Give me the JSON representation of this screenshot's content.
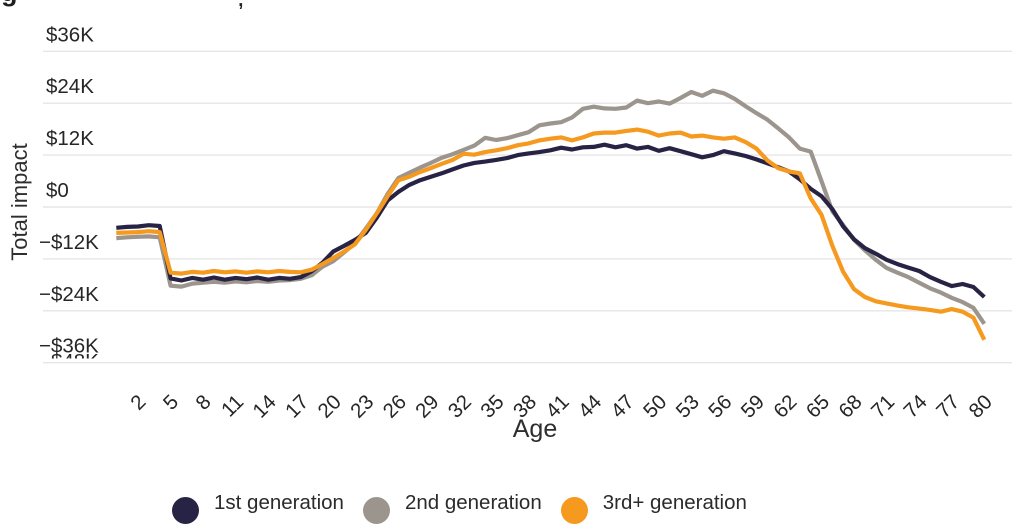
{
  "clipped_header": {
    "fragment_left": "g",
    "fragment_comma": ","
  },
  "chart_data": {
    "type": "line",
    "title": "",
    "xlabel": "Age",
    "ylabel": "Total impact",
    "grid": true,
    "legend_position": "bottom",
    "ylim": [
      -44,
      42
    ],
    "y_tick_labels": [
      "$36K",
      "$24K",
      "$12K",
      "$0",
      "−$12K",
      "−$24K",
      "−$36K"
    ],
    "y_tick_values": [
      36,
      24,
      12,
      0,
      -12,
      -24,
      -36
    ],
    "clipped_y_tick_label": "−$48K",
    "x_tick_labels": [
      2,
      5,
      8,
      11,
      14,
      17,
      20,
      23,
      26,
      29,
      32,
      35,
      38,
      41,
      44,
      47,
      50,
      53,
      56,
      59,
      62,
      65,
      68,
      71,
      74,
      77,
      80
    ],
    "x": [
      0,
      1,
      2,
      3,
      4,
      5,
      6,
      7,
      8,
      9,
      10,
      11,
      12,
      13,
      14,
      15,
      16,
      17,
      18,
      19,
      20,
      21,
      22,
      23,
      24,
      25,
      26,
      27,
      28,
      29,
      30,
      31,
      32,
      33,
      34,
      35,
      36,
      37,
      38,
      39,
      40,
      41,
      42,
      43,
      44,
      45,
      46,
      47,
      48,
      49,
      50,
      51,
      52,
      53,
      54,
      55,
      56,
      57,
      58,
      59,
      60,
      61,
      62,
      63,
      64,
      65,
      66,
      67,
      68,
      69,
      70,
      71,
      72,
      73,
      74,
      75,
      76,
      77,
      78,
      79,
      80
    ],
    "value_unit": "$K",
    "series": [
      {
        "name": "1st generation",
        "color": "#272344",
        "values": [
          -4.8,
          -4.6,
          -4.5,
          -4.2,
          -4.4,
          -16.5,
          -17.0,
          -16.4,
          -16.8,
          -16.3,
          -16.8,
          -16.4,
          -16.7,
          -16.3,
          -16.8,
          -16.4,
          -16.6,
          -16.2,
          -14.9,
          -12.9,
          -10.3,
          -9.0,
          -7.6,
          -6.0,
          -2.5,
          1.5,
          3.5,
          5.1,
          6.2,
          7.0,
          7.8,
          8.7,
          9.6,
          10.2,
          10.5,
          10.9,
          11.3,
          12.0,
          12.4,
          12.7,
          13.1,
          13.7,
          13.3,
          13.8,
          13.9,
          14.4,
          13.8,
          14.3,
          13.5,
          13.9,
          13.0,
          13.6,
          12.9,
          12.2,
          11.5,
          12.0,
          12.9,
          12.4,
          11.8,
          11.0,
          10.1,
          9.2,
          8.2,
          6.4,
          4.2,
          2.5,
          -0.5,
          -4.5,
          -7.5,
          -9.5,
          -10.8,
          -12.2,
          -13.2,
          -14.0,
          -14.8,
          -16.2,
          -17.3,
          -18.3,
          -17.8,
          -18.5,
          -20.8
        ]
      },
      {
        "name": "2nd generation",
        "color": "#9b958e",
        "values": [
          -7.2,
          -7.0,
          -6.9,
          -6.8,
          -7.0,
          -18.2,
          -18.4,
          -17.7,
          -17.5,
          -17.3,
          -17.5,
          -17.2,
          -17.4,
          -17.1,
          -17.3,
          -17.0,
          -16.9,
          -16.6,
          -15.8,
          -13.8,
          -12.5,
          -10.5,
          -8.3,
          -5.0,
          -1.5,
          3.0,
          6.7,
          7.9,
          9.1,
          10.2,
          11.4,
          12.2,
          13.2,
          14.2,
          16.0,
          15.5,
          15.9,
          16.6,
          17.3,
          18.9,
          19.3,
          19.6,
          20.7,
          22.7,
          23.2,
          22.8,
          22.7,
          23.0,
          24.6,
          24.0,
          24.4,
          23.9,
          25.2,
          26.6,
          25.7,
          26.9,
          26.3,
          25.0,
          23.3,
          21.7,
          20.2,
          18.2,
          16.1,
          13.5,
          12.8,
          6.0,
          -1.0,
          -4.2,
          -7.6,
          -10.0,
          -12.2,
          -14.1,
          -15.2,
          -16.2,
          -17.5,
          -18.8,
          -19.8,
          -21.0,
          -22.0,
          -23.3,
          -27.0
        ]
      },
      {
        "name": "3rd+ generation",
        "color": "#f5991f",
        "values": [
          -6.0,
          -5.9,
          -5.8,
          -5.6,
          -5.8,
          -15.2,
          -15.4,
          -15.0,
          -15.2,
          -14.8,
          -15.1,
          -14.9,
          -15.2,
          -14.9,
          -15.1,
          -14.8,
          -15.0,
          -15.1,
          -14.5,
          -13.2,
          -11.8,
          -10.3,
          -8.6,
          -5.3,
          -1.5,
          2.5,
          6.2,
          7.0,
          8.1,
          9.0,
          10.0,
          10.9,
          12.3,
          12.1,
          12.7,
          13.1,
          13.6,
          14.3,
          14.7,
          15.4,
          15.8,
          16.1,
          15.4,
          16.1,
          17.0,
          17.2,
          17.2,
          17.6,
          17.9,
          17.4,
          16.5,
          17.0,
          17.2,
          16.3,
          16.5,
          16.1,
          15.8,
          16.1,
          15.0,
          13.5,
          10.8,
          9.0,
          8.2,
          7.8,
          2.0,
          -1.8,
          -9.0,
          -15.0,
          -19.0,
          -20.8,
          -21.8,
          -22.3,
          -22.8,
          -23.2,
          -23.5,
          -23.8,
          -24.2,
          -23.6,
          -24.2,
          -25.6,
          -30.7
        ]
      }
    ]
  },
  "style": {
    "grid_color": "#e6e6e6",
    "tick_text_color": "#262626",
    "background": "#ffffff"
  }
}
